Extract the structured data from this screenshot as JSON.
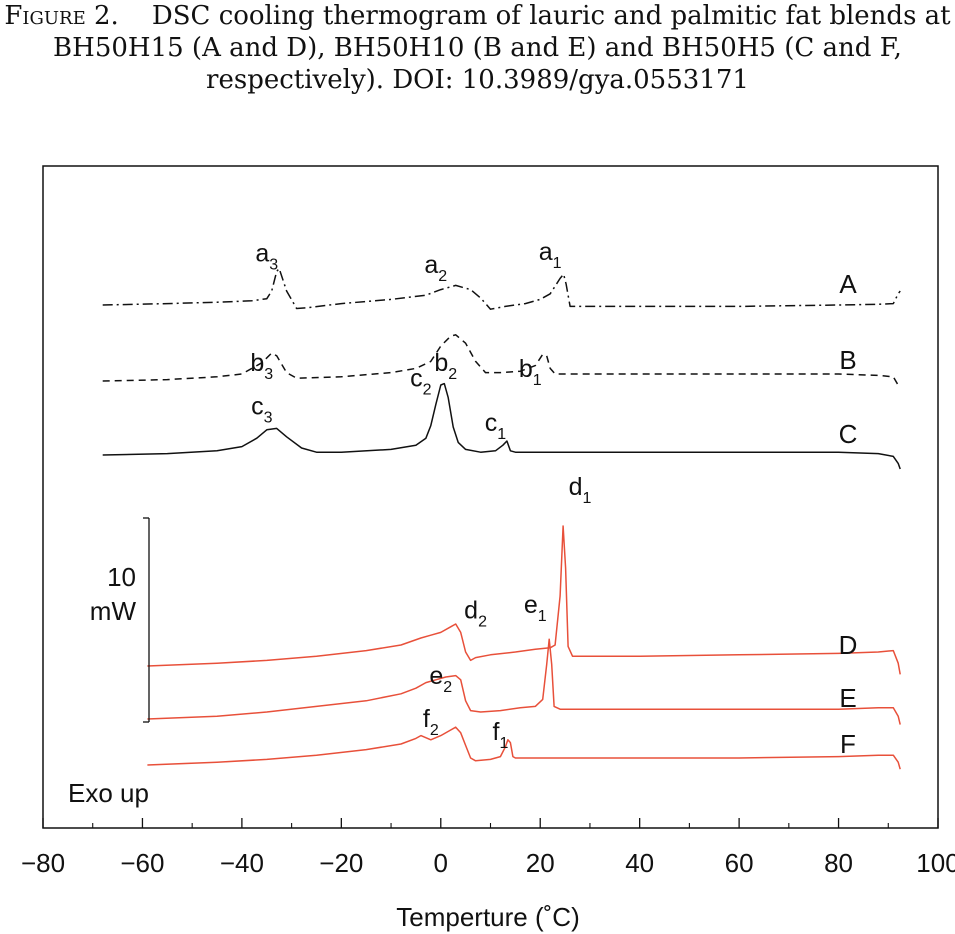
{
  "caption": {
    "figure_label": "Figure 2.",
    "text": "DSC cooling thermogram of lauric and palmitic fat blends at BH50H15 (A and D), BH50H10 (B and E) and BH50H5 (C and F, respectively). DOI: 10.3989/gya.0553171"
  },
  "chart_data": {
    "type": "line",
    "xlabel": "Temperture (˚C)",
    "xlim": [
      -80,
      100
    ],
    "x_ticks": [
      -80,
      -60,
      -40,
      -20,
      0,
      20,
      40,
      60,
      80,
      100
    ],
    "scale_bar": {
      "value": "10",
      "unit": "mW"
    },
    "exo_label": "Exo up",
    "colors": {
      "black": "#111111",
      "red": "#e8503a"
    },
    "series": [
      {
        "name": "A",
        "color": "#111111",
        "style": "dashdot",
        "baseline": 0.0,
        "points": [
          [
            -68,
            0
          ],
          [
            -55,
            -0.1
          ],
          [
            -45,
            -0.2
          ],
          [
            -38,
            -0.3
          ],
          [
            -35,
            -0.45
          ],
          [
            -34,
            -1.0
          ],
          [
            -33,
            -2.4
          ],
          [
            -32.5,
            -2.6
          ],
          [
            -31,
            -1.0
          ],
          [
            -29,
            0.25
          ],
          [
            -27,
            0.2
          ],
          [
            -20,
            -0.1
          ],
          [
            -10,
            -0.4
          ],
          [
            -3,
            -0.7
          ],
          [
            0,
            -1.1
          ],
          [
            3,
            -1.4
          ],
          [
            6,
            -1.1
          ],
          [
            8,
            -0.5
          ],
          [
            10,
            0.3
          ],
          [
            13,
            0.1
          ],
          [
            17,
            -0.1
          ],
          [
            20,
            -0.4
          ],
          [
            22,
            -0.8
          ],
          [
            24,
            -1.9
          ],
          [
            24.7,
            -2.2
          ],
          [
            25.2,
            -1.5
          ],
          [
            26,
            0.1
          ],
          [
            40,
            0.1
          ],
          [
            60,
            0.1
          ],
          [
            80,
            0.0
          ],
          [
            88,
            -0.05
          ],
          [
            91,
            -0.1
          ],
          [
            92,
            -0.8
          ],
          [
            92.4,
            -1.0
          ]
        ]
      },
      {
        "name": "B",
        "color": "#111111",
        "style": "dashed",
        "baseline": 3.1,
        "points": [
          [
            -68,
            3.1
          ],
          [
            -55,
            3.0
          ],
          [
            -45,
            2.8
          ],
          [
            -40,
            2.6
          ],
          [
            -36,
            1.8
          ],
          [
            -34,
            1.1
          ],
          [
            -33,
            1.3
          ],
          [
            -31,
            2.5
          ],
          [
            -29,
            2.9
          ],
          [
            -20,
            2.8
          ],
          [
            -10,
            2.5
          ],
          [
            -5,
            2.2
          ],
          [
            -2,
            1.7
          ],
          [
            0,
            0.6
          ],
          [
            2,
            -0.1
          ],
          [
            3,
            -0.2
          ],
          [
            5,
            0.4
          ],
          [
            7,
            1.7
          ],
          [
            9,
            2.5
          ],
          [
            12,
            2.5
          ],
          [
            16,
            2.4
          ],
          [
            19,
            2.0
          ],
          [
            20.5,
            1.2
          ],
          [
            21.3,
            1.3
          ],
          [
            22,
            2.2
          ],
          [
            23,
            2.6
          ],
          [
            40,
            2.6
          ],
          [
            60,
            2.6
          ],
          [
            80,
            2.6
          ],
          [
            88,
            2.7
          ],
          [
            91,
            2.8
          ],
          [
            92,
            3.4
          ],
          [
            92.4,
            3.6
          ]
        ]
      },
      {
        "name": "C",
        "color": "#111111",
        "style": "solid",
        "baseline": 6.0,
        "points": [
          [
            -68,
            6.0
          ],
          [
            -55,
            5.9
          ],
          [
            -45,
            5.7
          ],
          [
            -40,
            5.4
          ],
          [
            -37,
            4.8
          ],
          [
            -35,
            4.2
          ],
          [
            -33,
            4.1
          ],
          [
            -31,
            4.7
          ],
          [
            -28,
            5.5
          ],
          [
            -25,
            5.8
          ],
          [
            -20,
            5.8
          ],
          [
            -10,
            5.6
          ],
          [
            -5,
            5.3
          ],
          [
            -3,
            4.8
          ],
          [
            -2,
            3.9
          ],
          [
            -1,
            2.4
          ],
          [
            0,
            1.0
          ],
          [
            0.7,
            0.9
          ],
          [
            1.5,
            1.9
          ],
          [
            2.5,
            4.0
          ],
          [
            3.5,
            5.1
          ],
          [
            5,
            5.6
          ],
          [
            8,
            5.8
          ],
          [
            11,
            5.7
          ],
          [
            12.5,
            5.3
          ],
          [
            13.3,
            5.0
          ],
          [
            14,
            5.7
          ],
          [
            15,
            5.8
          ],
          [
            40,
            5.8
          ],
          [
            60,
            5.8
          ],
          [
            80,
            5.8
          ],
          [
            88,
            5.9
          ],
          [
            91,
            6.1
          ],
          [
            92,
            6.6
          ],
          [
            92.4,
            7.0
          ]
        ]
      },
      {
        "name": "D",
        "color": "#e8503a",
        "style": "solid",
        "baseline": 16.0,
        "points": [
          [
            -59,
            16.0
          ],
          [
            -45,
            15.8
          ],
          [
            -35,
            15.6
          ],
          [
            -25,
            15.3
          ],
          [
            -15,
            14.9
          ],
          [
            -8,
            14.5
          ],
          [
            -4,
            14.0
          ],
          [
            -2,
            13.8
          ],
          [
            0,
            13.6
          ],
          [
            2,
            13.2
          ],
          [
            3,
            13.0
          ],
          [
            4,
            13.6
          ],
          [
            5,
            15.0
          ],
          [
            6,
            15.6
          ],
          [
            7,
            15.4
          ],
          [
            10,
            15.2
          ],
          [
            15,
            15.0
          ],
          [
            19,
            14.8
          ],
          [
            22,
            14.7
          ],
          [
            23,
            14.5
          ],
          [
            24,
            11.0
          ],
          [
            24.6,
            6.0
          ],
          [
            25.1,
            9.0
          ],
          [
            25.6,
            14.6
          ],
          [
            26.5,
            15.3
          ],
          [
            40,
            15.3
          ],
          [
            60,
            15.2
          ],
          [
            80,
            15.1
          ],
          [
            88,
            15.0
          ],
          [
            91,
            14.9
          ],
          [
            92,
            15.8
          ],
          [
            92.4,
            16.6
          ]
        ]
      },
      {
        "name": "E",
        "color": "#e8503a",
        "style": "solid",
        "baseline": 17.4,
        "points": [
          [
            -59,
            17.4
          ],
          [
            -45,
            17.2
          ],
          [
            -35,
            16.9
          ],
          [
            -25,
            16.5
          ],
          [
            -15,
            16.1
          ],
          [
            -8,
            15.6
          ],
          [
            -5,
            15.2
          ],
          [
            -3,
            14.8
          ],
          [
            -1,
            14.6
          ],
          [
            1,
            14.4
          ],
          [
            3,
            14.3
          ],
          [
            4,
            14.6
          ],
          [
            5,
            16.1
          ],
          [
            6,
            16.8
          ],
          [
            8,
            16.9
          ],
          [
            12,
            16.8
          ],
          [
            16,
            16.6
          ],
          [
            19,
            16.5
          ],
          [
            20.5,
            16.0
          ],
          [
            21.3,
            13.5
          ],
          [
            21.8,
            11.7
          ],
          [
            22.3,
            13.5
          ],
          [
            22.8,
            16.5
          ],
          [
            24,
            16.7
          ],
          [
            40,
            16.7
          ],
          [
            60,
            16.7
          ],
          [
            80,
            16.7
          ],
          [
            88,
            16.6
          ],
          [
            91,
            16.6
          ],
          [
            92,
            17.2
          ],
          [
            92.4,
            17.8
          ]
        ]
      },
      {
        "name": "F",
        "color": "#e8503a",
        "style": "solid",
        "baseline": 18.7,
        "points": [
          [
            -59,
            18.7
          ],
          [
            -45,
            18.5
          ],
          [
            -35,
            18.3
          ],
          [
            -25,
            18.0
          ],
          [
            -15,
            17.6
          ],
          [
            -8,
            17.2
          ],
          [
            -5,
            16.8
          ],
          [
            -4,
            16.6
          ],
          [
            -2,
            16.9
          ],
          [
            0,
            16.6
          ],
          [
            2,
            16.2
          ],
          [
            3,
            16.0
          ],
          [
            4,
            16.4
          ],
          [
            5,
            17.3
          ],
          [
            6,
            18.2
          ],
          [
            7,
            18.4
          ],
          [
            10,
            18.3
          ],
          [
            12,
            18.1
          ],
          [
            13,
            17.4
          ],
          [
            13.5,
            16.9
          ],
          [
            14,
            17.1
          ],
          [
            14.5,
            18.1
          ],
          [
            15,
            18.2
          ],
          [
            40,
            18.2
          ],
          [
            60,
            18.2
          ],
          [
            80,
            18.1
          ],
          [
            88,
            18.0
          ],
          [
            91,
            18.0
          ],
          [
            92,
            18.5
          ],
          [
            92.4,
            19.0
          ]
        ]
      }
    ],
    "annotations": [
      {
        "label": "a",
        "sub": "3",
        "x": -35,
        "row": 0,
        "dy": -3.1
      },
      {
        "label": "a",
        "sub": "2",
        "x": -1,
        "row": 0,
        "dy": -2.3
      },
      {
        "label": "a",
        "sub": "1",
        "x": 22,
        "row": 0,
        "dy": -3.2
      },
      {
        "label": "b",
        "sub": "3",
        "x": -36,
        "row": 1,
        "dy": -0.7
      },
      {
        "label": "b",
        "sub": "2",
        "x": 1,
        "row": 1,
        "dy": -0.7
      },
      {
        "label": "c",
        "sub": "2",
        "x": -4,
        "row": 1,
        "dy": 0.4
      },
      {
        "label": "b",
        "sub": "1",
        "x": 18,
        "row": 1,
        "dy": -0.3
      },
      {
        "label": "c",
        "sub": "3",
        "x": -36,
        "row": 2,
        "dy": -2.9
      },
      {
        "label": "c",
        "sub": "1",
        "x": 11,
        "row": 2,
        "dy": -1.7
      },
      {
        "label": "d",
        "sub": "1",
        "x": 28,
        "row": 3,
        "dy": -12.2
      },
      {
        "label": "d",
        "sub": "2",
        "x": 7,
        "row": 3,
        "dy": -3.4
      },
      {
        "label": "e",
        "sub": "1",
        "x": 19,
        "row": 3,
        "dy": -3.8
      },
      {
        "label": "e",
        "sub": "2",
        "x": 0,
        "row": 4,
        "dy": -2.5
      },
      {
        "label": "f",
        "sub": "2",
        "x": -2,
        "row": 5,
        "dy": -2.7
      },
      {
        "label": "f",
        "sub": "1",
        "x": 12,
        "row": 5,
        "dy": -1.8
      }
    ]
  }
}
